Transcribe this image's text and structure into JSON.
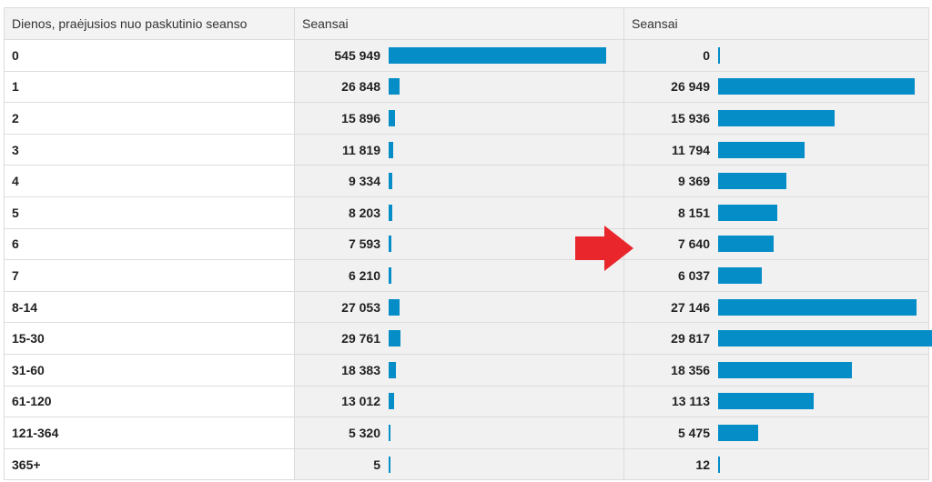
{
  "headers": [
    "Dienos, praėjusios nuo paskutinio seanso",
    "Seansai",
    "Seansai"
  ],
  "bar_color": "#058dc7",
  "arrow_color": "#e8262b",
  "arrow_icon": "arrow-right-icon",
  "rows": [
    {
      "label": "0",
      "a": "545 949",
      "av": 545949,
      "b": "0",
      "bv": 0
    },
    {
      "label": "1",
      "a": "26 848",
      "av": 26848,
      "b": "26 949",
      "bv": 26949
    },
    {
      "label": "2",
      "a": "15 896",
      "av": 15896,
      "b": "15 936",
      "bv": 15936
    },
    {
      "label": "3",
      "a": "11 819",
      "av": 11819,
      "b": "11 794",
      "bv": 11794
    },
    {
      "label": "4",
      "a": "9 334",
      "av": 9334,
      "b": "9 369",
      "bv": 9369
    },
    {
      "label": "5",
      "a": "8 203",
      "av": 8203,
      "b": "8 151",
      "bv": 8151
    },
    {
      "label": "6",
      "a": "7 593",
      "av": 7593,
      "b": "7 640",
      "bv": 7640
    },
    {
      "label": "7",
      "a": "6 210",
      "av": 6210,
      "b": "6 037",
      "bv": 6037
    },
    {
      "label": "8-14",
      "a": "27 053",
      "av": 27053,
      "b": "27 146",
      "bv": 27146
    },
    {
      "label": "15-30",
      "a": "29 761",
      "av": 29761,
      "b": "29 817",
      "bv": 29817
    },
    {
      "label": "31-60",
      "a": "18 383",
      "av": 18383,
      "b": "18 356",
      "bv": 18356
    },
    {
      "label": "61-120",
      "a": "13 012",
      "av": 13012,
      "b": "13 113",
      "bv": 13113
    },
    {
      "label": "121-364",
      "a": "5 320",
      "av": 5320,
      "b": "5 475",
      "bv": 5475
    },
    {
      "label": "365+",
      "a": "5",
      "av": 5,
      "b": "12",
      "bv": 12
    }
  ]
}
